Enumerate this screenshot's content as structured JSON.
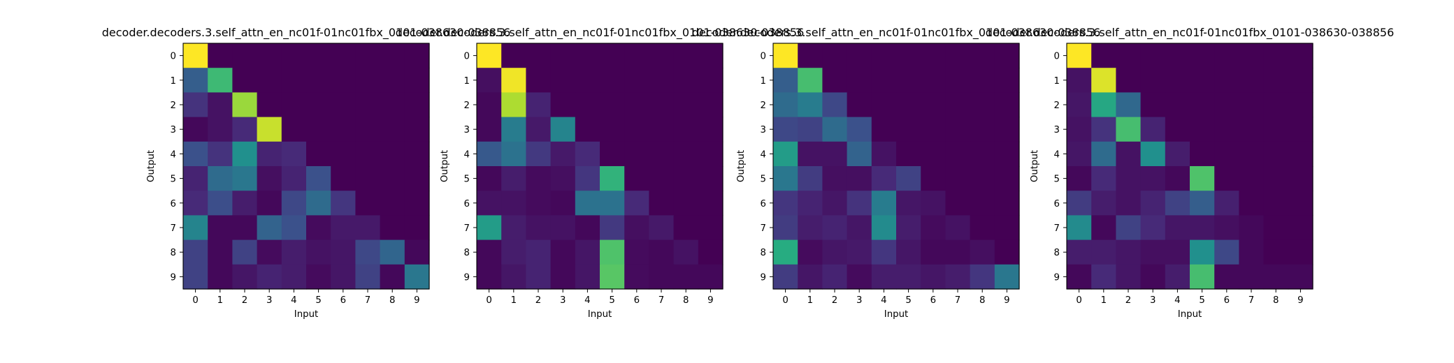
{
  "chart_data": [
    {
      "type": "heatmap",
      "title": "decoder.decoders.3.self_attn_en_nc01f-01nc01fbx_0101-038630-038856",
      "xlabel": "Input",
      "ylabel": "Output",
      "x_ticks": [
        "0",
        "1",
        "2",
        "3",
        "4",
        "5",
        "6",
        "7",
        "8",
        "9"
      ],
      "y_ticks": [
        "0",
        "1",
        "2",
        "3",
        "4",
        "5",
        "6",
        "7",
        "8",
        "9"
      ],
      "colormap": "viridis",
      "value_range": [
        0,
        1
      ],
      "values": [
        [
          1.0,
          0,
          0,
          0,
          0,
          0,
          0,
          0,
          0,
          0
        ],
        [
          0.3,
          0.68,
          0,
          0,
          0,
          0,
          0,
          0,
          0,
          0
        ],
        [
          0.15,
          0.05,
          0.85,
          0,
          0,
          0,
          0,
          0,
          0,
          0
        ],
        [
          0.02,
          0.05,
          0.12,
          0.92,
          0,
          0,
          0,
          0,
          0,
          0
        ],
        [
          0.25,
          0.15,
          0.5,
          0.1,
          0.12,
          0,
          0,
          0,
          0,
          0
        ],
        [
          0.1,
          0.35,
          0.4,
          0.04,
          0.1,
          0.25,
          0,
          0,
          0,
          0
        ],
        [
          0.12,
          0.24,
          0.08,
          0.02,
          0.22,
          0.35,
          0.16,
          0,
          0,
          0
        ],
        [
          0.45,
          0.02,
          0.02,
          0.32,
          0.25,
          0.03,
          0.07,
          0.07,
          0,
          0
        ],
        [
          0.2,
          0.02,
          0.2,
          0.03,
          0.08,
          0.05,
          0.06,
          0.22,
          0.33,
          0.02
        ],
        [
          0.2,
          0.02,
          0.06,
          0.1,
          0.08,
          0.03,
          0.06,
          0.2,
          0.02,
          0.4
        ]
      ]
    },
    {
      "type": "heatmap",
      "title": "decoder.decoders.3.self_attn_en_nc01f-01nc01fbx_0101-038630-038856",
      "xlabel": "Input",
      "ylabel": "Output",
      "x_ticks": [
        "0",
        "1",
        "2",
        "3",
        "4",
        "5",
        "6",
        "7",
        "8",
        "9"
      ],
      "y_ticks": [
        "0",
        "1",
        "2",
        "3",
        "4",
        "5",
        "6",
        "7",
        "8",
        "9"
      ],
      "colormap": "viridis",
      "value_range": [
        0,
        1
      ],
      "values": [
        [
          1.0,
          0,
          0,
          0,
          0,
          0,
          0,
          0,
          0,
          0
        ],
        [
          0.04,
          0.98,
          0,
          0,
          0,
          0,
          0,
          0,
          0,
          0
        ],
        [
          0.02,
          0.88,
          0.1,
          0,
          0,
          0,
          0,
          0,
          0,
          0
        ],
        [
          0.02,
          0.42,
          0.07,
          0.45,
          0,
          0,
          0,
          0,
          0,
          0
        ],
        [
          0.28,
          0.38,
          0.17,
          0.07,
          0.12,
          0,
          0,
          0,
          0,
          0
        ],
        [
          0.02,
          0.08,
          0.03,
          0.04,
          0.16,
          0.65,
          0,
          0,
          0,
          0
        ],
        [
          0.05,
          0.05,
          0.03,
          0.02,
          0.38,
          0.38,
          0.12,
          0,
          0,
          0
        ],
        [
          0.55,
          0.08,
          0.05,
          0.05,
          0.02,
          0.17,
          0.04,
          0.07,
          0,
          0
        ],
        [
          0.02,
          0.08,
          0.1,
          0.02,
          0.06,
          0.72,
          0.03,
          0.02,
          0.05,
          0
        ],
        [
          0.02,
          0.06,
          0.1,
          0.02,
          0.06,
          0.74,
          0.03,
          0.02,
          0.02,
          0.02
        ]
      ]
    },
    {
      "type": "heatmap",
      "title": "decoder.decoders.3.self_attn_en_nc01f-01nc01fbx_0101-038630-038856",
      "xlabel": "Input",
      "ylabel": "Output",
      "x_ticks": [
        "0",
        "1",
        "2",
        "3",
        "4",
        "5",
        "6",
        "7",
        "8",
        "9"
      ],
      "y_ticks": [
        "0",
        "1",
        "2",
        "3",
        "4",
        "5",
        "6",
        "7",
        "8",
        "9"
      ],
      "colormap": "viridis",
      "value_range": [
        0,
        1
      ],
      "values": [
        [
          1.0,
          0,
          0,
          0,
          0,
          0,
          0,
          0,
          0,
          0
        ],
        [
          0.3,
          0.7,
          0,
          0,
          0,
          0,
          0,
          0,
          0,
          0
        ],
        [
          0.35,
          0.42,
          0.22,
          0,
          0,
          0,
          0,
          0,
          0,
          0
        ],
        [
          0.22,
          0.2,
          0.35,
          0.25,
          0,
          0,
          0,
          0,
          0,
          0
        ],
        [
          0.55,
          0.05,
          0.05,
          0.32,
          0.05,
          0,
          0,
          0,
          0,
          0
        ],
        [
          0.4,
          0.18,
          0.04,
          0.04,
          0.12,
          0.2,
          0,
          0,
          0,
          0
        ],
        [
          0.16,
          0.1,
          0.06,
          0.15,
          0.42,
          0.06,
          0.05,
          0,
          0,
          0
        ],
        [
          0.18,
          0.08,
          0.1,
          0.06,
          0.48,
          0.08,
          0.03,
          0.05,
          0,
          0
        ],
        [
          0.62,
          0.03,
          0.06,
          0.07,
          0.16,
          0.06,
          0.02,
          0.02,
          0.04,
          0
        ],
        [
          0.18,
          0.06,
          0.1,
          0.03,
          0.08,
          0.08,
          0.06,
          0.08,
          0.16,
          0.4
        ]
      ]
    },
    {
      "type": "heatmap",
      "title": "decoder.decoders.3.self_attn_en_nc01f-01nc01fbx_0101-038630-038856",
      "xlabel": "Input",
      "ylabel": "Output",
      "x_ticks": [
        "0",
        "1",
        "2",
        "3",
        "4",
        "5",
        "6",
        "7",
        "8",
        "9"
      ],
      "y_ticks": [
        "0",
        "1",
        "2",
        "3",
        "4",
        "5",
        "6",
        "7",
        "8",
        "9"
      ],
      "colormap": "viridis",
      "value_range": [
        0,
        1
      ],
      "values": [
        [
          1.0,
          0,
          0,
          0,
          0,
          0,
          0,
          0,
          0,
          0
        ],
        [
          0.05,
          0.95,
          0,
          0,
          0,
          0,
          0,
          0,
          0,
          0
        ],
        [
          0.06,
          0.6,
          0.34,
          0,
          0,
          0,
          0,
          0,
          0,
          0
        ],
        [
          0.05,
          0.15,
          0.7,
          0.1,
          0,
          0,
          0,
          0,
          0,
          0
        ],
        [
          0.06,
          0.35,
          0.05,
          0.5,
          0.08,
          0,
          0,
          0,
          0,
          0
        ],
        [
          0.02,
          0.12,
          0.05,
          0.05,
          0.02,
          0.72,
          0,
          0,
          0,
          0
        ],
        [
          0.18,
          0.08,
          0.05,
          0.1,
          0.2,
          0.3,
          0.09,
          0,
          0,
          0
        ],
        [
          0.48,
          0.02,
          0.2,
          0.12,
          0.06,
          0.06,
          0.04,
          0.02,
          0,
          0
        ],
        [
          0.08,
          0.08,
          0.06,
          0.04,
          0.04,
          0.5,
          0.22,
          0.02,
          0,
          0
        ],
        [
          0.02,
          0.12,
          0.06,
          0.02,
          0.08,
          0.7,
          0.02,
          0.02,
          0.02,
          0.02
        ]
      ]
    }
  ]
}
